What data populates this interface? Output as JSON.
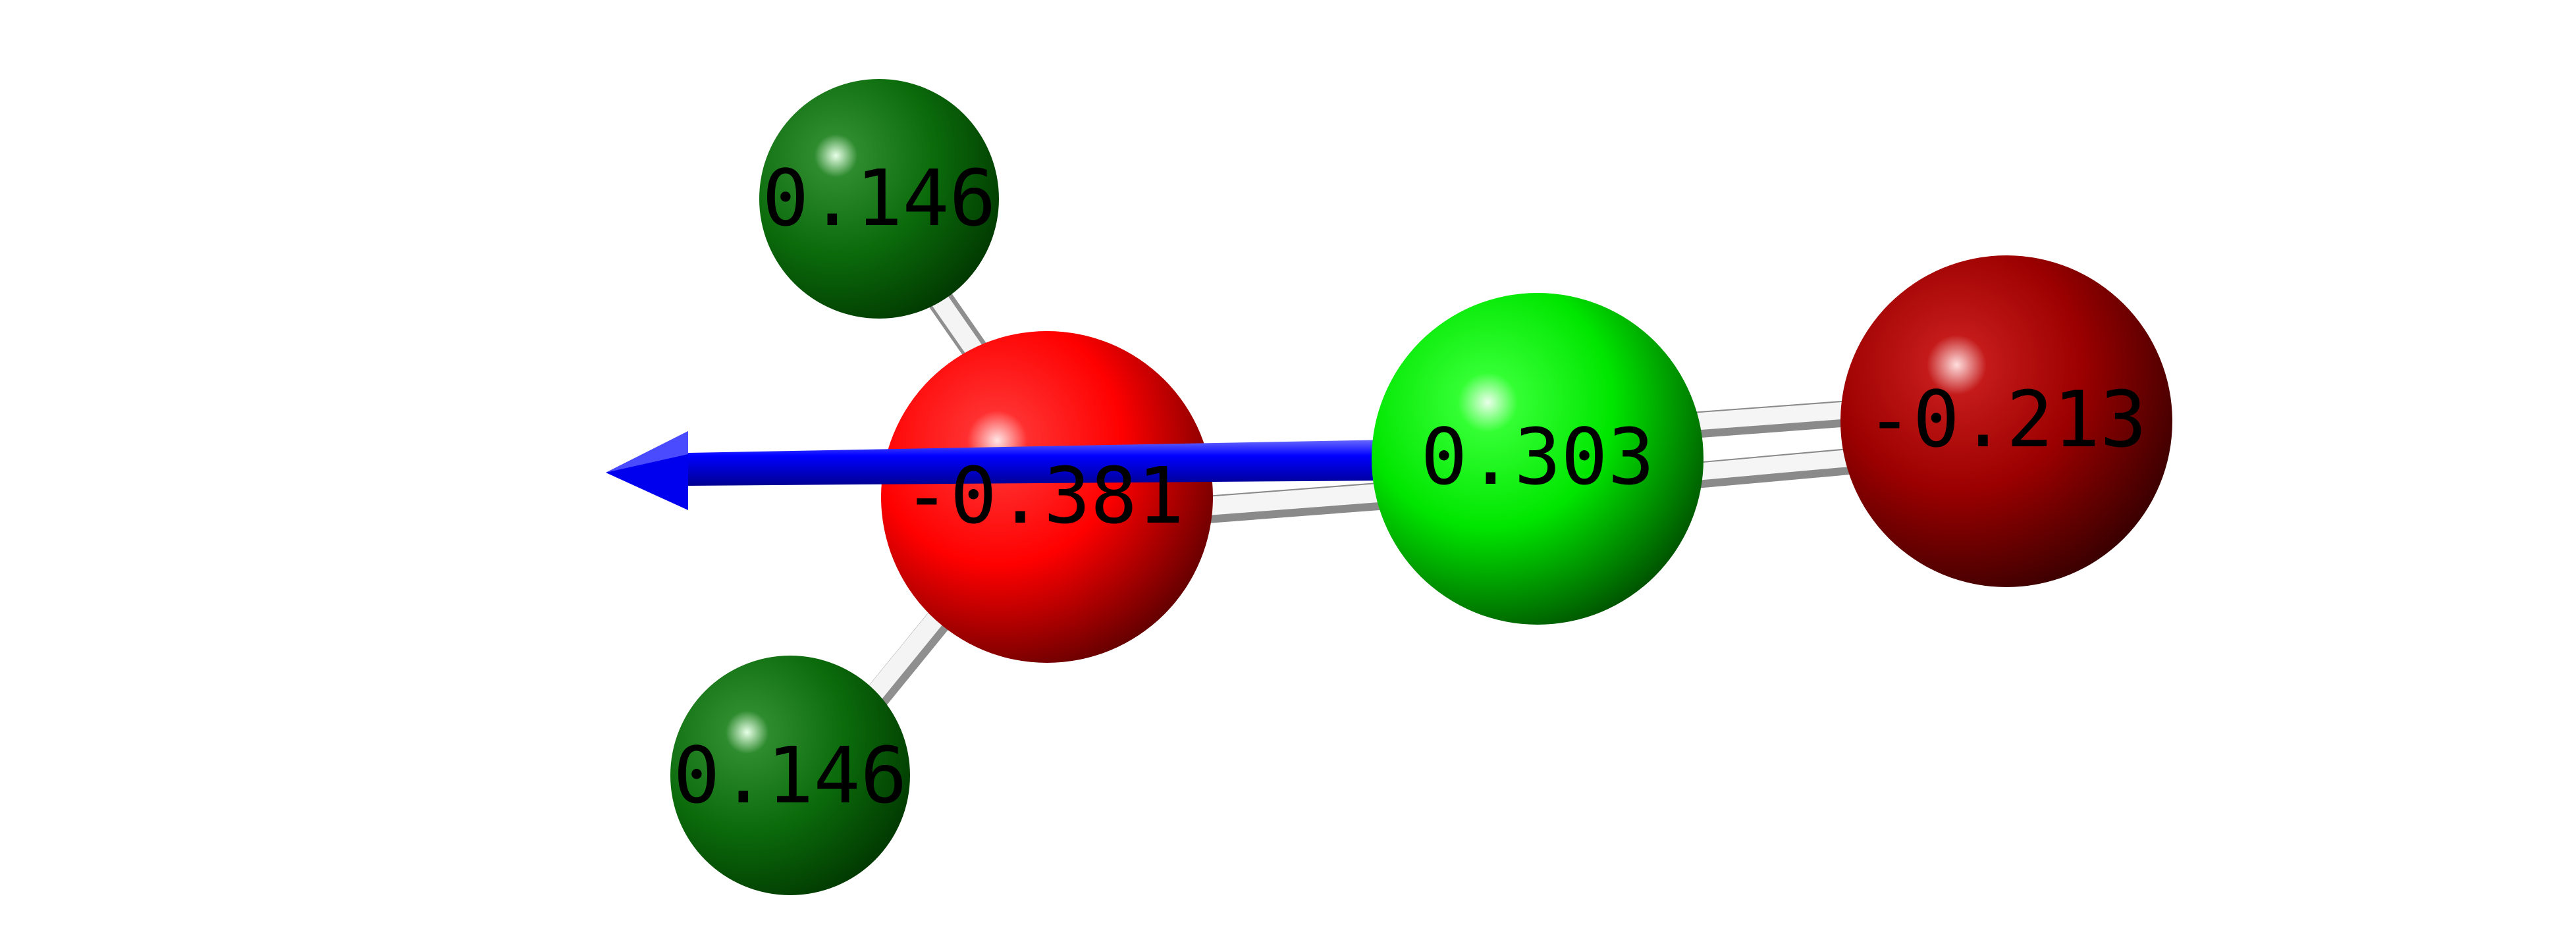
{
  "molecule": {
    "atoms": [
      {
        "id": "h1",
        "charge_label": "0.146",
        "color": "#0b6b0b",
        "shade": "#013d01"
      },
      {
        "id": "h2",
        "charge_label": "0.146",
        "color": "#0b6b0b",
        "shade": "#013d01"
      },
      {
        "id": "c1",
        "charge_label": "-0.381",
        "color": "#ff0000",
        "shade": "#5e0000"
      },
      {
        "id": "c2",
        "charge_label": "0.303",
        "color": "#00ff00",
        "shade": "#004d00"
      },
      {
        "id": "o1",
        "charge_label": "-0.213",
        "color": "#a60000",
        "shade": "#3a0000"
      }
    ],
    "bond_color": "#e6e6e6",
    "dipole_arrow_color": "#0000ff"
  }
}
